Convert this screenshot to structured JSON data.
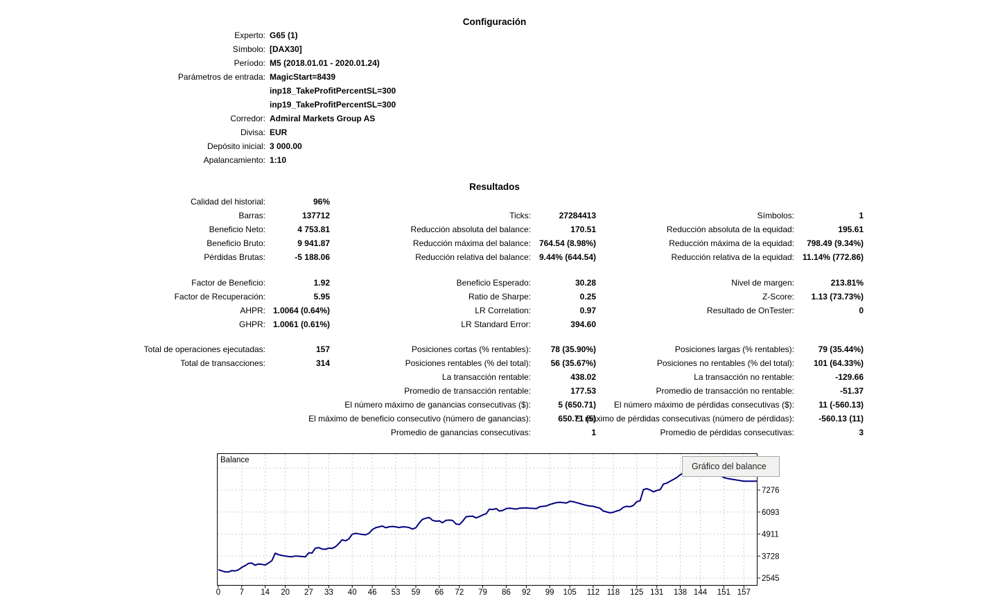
{
  "title_config": "Configuración",
  "title_results": "Resultados",
  "config": {
    "rows": [
      {
        "label": "Experto:",
        "value": "G65 (1)"
      },
      {
        "label": "Símbolo:",
        "value": "[DAX30]"
      },
      {
        "label": "Período:",
        "value": "M5 (2018.01.01 - 2020.01.24)"
      },
      {
        "label": "Parámetros de entrada:",
        "value": "MagicStart=8439"
      },
      {
        "label": "",
        "value": "inp18_TakeProfitPercentSL=300"
      },
      {
        "label": "",
        "value": "inp19_TakeProfitPercentSL=300"
      },
      {
        "label": "Corredor:",
        "value": "Admiral Markets Group AS"
      },
      {
        "label": "Divisa:",
        "value": "EUR"
      },
      {
        "label": "Depósito inicial:",
        "value": "3 000.00"
      },
      {
        "label": "Apalancamiento:",
        "value": "1:10"
      }
    ]
  },
  "results": {
    "blocks": [
      {
        "rows": [
          [
            "Calidad del historial:",
            "96%",
            "",
            "",
            "",
            ""
          ],
          [
            "Barras:",
            "137712",
            "Ticks:",
            "27284413",
            "Símbolos:",
            "1"
          ],
          [
            "Beneficio Neto:",
            "4 753.81",
            "Reducción absoluta del balance:",
            "170.51",
            "Reducción absoluta de la equidad:",
            "195.61"
          ],
          [
            "Beneficio Bruto:",
            "9 941.87",
            "Reducción máxima del balance:",
            "764.54 (8.98%)",
            "Reducción máxima de la equidad:",
            "798.49 (9.34%)"
          ],
          [
            "Pérdidas Brutas:",
            "-5 188.06",
            "Reducción relativa del balance:",
            "9.44% (644.54)",
            "Reducción relativa de la equidad:",
            "11.14% (772.86)"
          ]
        ]
      },
      {
        "rows": [
          [
            "Factor de Beneficio:",
            "1.92",
            "Beneficio Esperado:",
            "30.28",
            "Nivel de margen:",
            "213.81%"
          ],
          [
            "Factor de Recuperación:",
            "5.95",
            "Ratio de Sharpe:",
            "0.25",
            "Z-Score:",
            "1.13 (73.73%)"
          ],
          [
            "AHPR:",
            "1.0064 (0.64%)",
            "LR Correlation:",
            "0.97",
            "Resultado de OnTester:",
            "0"
          ],
          [
            "GHPR:",
            "1.0061 (0.61%)",
            "LR Standard Error:",
            "394.60",
            "",
            ""
          ]
        ]
      },
      {
        "rows": [
          [
            "Total de operaciones ejecutadas:",
            "157",
            "Posiciones cortas (% rentables):",
            "78 (35.90%)",
            "Posiciones largas (% rentables):",
            "79 (35.44%)"
          ],
          [
            "Total de transacciones:",
            "314",
            "Posiciones rentables (% del total):",
            "56 (35.67%)",
            "Posiciones no rentables (% del total):",
            "101 (64.33%)"
          ],
          [
            "",
            "",
            "La transacción rentable:",
            "438.02",
            "La transacción no rentable:",
            "-129.66"
          ],
          [
            "",
            "",
            "Promedio de transacción rentable:",
            "177.53",
            "Promedio de transacción no rentable:",
            "-51.37"
          ],
          [
            "",
            "",
            "El número máximo de ganancias consecutivas ($):",
            "5 (650.71)",
            "El número máximo de pérdidas consecutivas ($):",
            "11 (-560.13)"
          ],
          [
            "",
            "",
            "El máximo de beneficio consecutivo (número de ganancias):",
            "650.71 (5)",
            "El máximo de pérdidas consecutivas (número de pérdidas):",
            "-560.13 (11)"
          ],
          [
            "",
            "",
            "Promedio de ganancias consecutivas:",
            "1",
            "Promedio de pérdidas consecutivas:",
            "3"
          ]
        ]
      }
    ]
  },
  "chart": {
    "label": "Balance",
    "tooltip": "Gráfico del balance",
    "colors": {
      "line": "#000080",
      "grid": "#cccccc",
      "border": "#000000",
      "tooltip_bg": "#f1f1f0",
      "tooltip_border": "#a7a7a7"
    }
  },
  "chart_data": {
    "type": "line",
    "title": "Balance",
    "x_ticks": [
      0,
      7,
      14,
      20,
      27,
      33,
      40,
      46,
      53,
      59,
      66,
      72,
      79,
      86,
      92,
      99,
      105,
      112,
      118,
      125,
      131,
      138,
      144,
      151,
      157
    ],
    "y_ticks": [
      2545,
      3728,
      4911,
      6093,
      7276,
      8459
    ],
    "x_range": [
      0,
      161
    ],
    "y_range": [
      2545,
      8459
    ],
    "grid": true,
    "series": [
      {
        "name": "Balance",
        "points": [
          [
            0,
            3000
          ],
          [
            1,
            2930
          ],
          [
            2,
            2880
          ],
          [
            3,
            2870
          ],
          [
            4,
            2945
          ],
          [
            5,
            2925
          ],
          [
            6,
            2985
          ],
          [
            7,
            3120
          ],
          [
            8,
            3210
          ],
          [
            9,
            3330
          ],
          [
            10,
            3350
          ],
          [
            11,
            3235
          ],
          [
            12,
            3300
          ],
          [
            13,
            3280
          ],
          [
            14,
            3250
          ],
          [
            15,
            3355
          ],
          [
            16,
            3480
          ],
          [
            17,
            3880
          ],
          [
            18,
            3800
          ],
          [
            19,
            3760
          ],
          [
            20,
            3725
          ],
          [
            21,
            3700
          ],
          [
            22,
            3690
          ],
          [
            23,
            3730
          ],
          [
            24,
            3720
          ],
          [
            25,
            3705
          ],
          [
            26,
            3680
          ],
          [
            27,
            3900
          ],
          [
            28,
            3890
          ],
          [
            29,
            4150
          ],
          [
            30,
            4180
          ],
          [
            31,
            4105
          ],
          [
            32,
            4090
          ],
          [
            33,
            4155
          ],
          [
            34,
            4140
          ],
          [
            35,
            4230
          ],
          [
            36,
            4400
          ],
          [
            37,
            4600
          ],
          [
            38,
            4550
          ],
          [
            39,
            4650
          ],
          [
            40,
            4900
          ],
          [
            41,
            4950
          ],
          [
            42,
            4920
          ],
          [
            43,
            4890
          ],
          [
            44,
            4870
          ],
          [
            45,
            4950
          ],
          [
            46,
            5150
          ],
          [
            47,
            5250
          ],
          [
            48,
            5300
          ],
          [
            49,
            5340
          ],
          [
            50,
            5250
          ],
          [
            51,
            5300
          ],
          [
            52,
            5320
          ],
          [
            53,
            5300
          ],
          [
            54,
            5260
          ],
          [
            55,
            5300
          ],
          [
            56,
            5290
          ],
          [
            57,
            5260
          ],
          [
            58,
            5180
          ],
          [
            59,
            5250
          ],
          [
            60,
            5500
          ],
          [
            61,
            5700
          ],
          [
            62,
            5760
          ],
          [
            63,
            5800
          ],
          [
            64,
            5650
          ],
          [
            65,
            5600
          ],
          [
            66,
            5620
          ],
          [
            67,
            5520
          ],
          [
            68,
            5650
          ],
          [
            69,
            5660
          ],
          [
            70,
            5640
          ],
          [
            71,
            5450
          ],
          [
            72,
            5420
          ],
          [
            73,
            5600
          ],
          [
            74,
            5840
          ],
          [
            75,
            5860
          ],
          [
            76,
            5870
          ],
          [
            77,
            5780
          ],
          [
            78,
            5850
          ],
          [
            79,
            5940
          ],
          [
            80,
            6000
          ],
          [
            81,
            6250
          ],
          [
            82,
            6230
          ],
          [
            83,
            6280
          ],
          [
            84,
            6150
          ],
          [
            85,
            6180
          ],
          [
            86,
            6280
          ],
          [
            87,
            6300
          ],
          [
            88,
            6280
          ],
          [
            89,
            6250
          ],
          [
            90,
            6300
          ],
          [
            91,
            6310
          ],
          [
            92,
            6320
          ],
          [
            93,
            6300
          ],
          [
            94,
            6290
          ],
          [
            95,
            6280
          ],
          [
            96,
            6380
          ],
          [
            97,
            6400
          ],
          [
            98,
            6420
          ],
          [
            99,
            6500
          ],
          [
            100,
            6550
          ],
          [
            101,
            6600
          ],
          [
            102,
            6620
          ],
          [
            103,
            6600
          ],
          [
            104,
            6580
          ],
          [
            105,
            6670
          ],
          [
            106,
            6650
          ],
          [
            107,
            6600
          ],
          [
            108,
            6550
          ],
          [
            109,
            6500
          ],
          [
            110,
            6450
          ],
          [
            111,
            6420
          ],
          [
            112,
            6400
          ],
          [
            113,
            6350
          ],
          [
            114,
            6300
          ],
          [
            115,
            6150
          ],
          [
            116,
            6100
          ],
          [
            117,
            6050
          ],
          [
            118,
            6080
          ],
          [
            119,
            6150
          ],
          [
            120,
            6200
          ],
          [
            121,
            6350
          ],
          [
            122,
            6400
          ],
          [
            123,
            6380
          ],
          [
            124,
            6450
          ],
          [
            125,
            6650
          ],
          [
            126,
            6700
          ],
          [
            127,
            7300
          ],
          [
            128,
            7350
          ],
          [
            129,
            7280
          ],
          [
            130,
            7180
          ],
          [
            131,
            7250
          ],
          [
            132,
            7300
          ],
          [
            133,
            7600
          ],
          [
            134,
            7650
          ],
          [
            135,
            7750
          ],
          [
            136,
            7850
          ],
          [
            137,
            7950
          ],
          [
            138,
            8100
          ],
          [
            139,
            8200
          ],
          [
            140,
            8300
          ],
          [
            141,
            8380
          ],
          [
            142,
            8459
          ],
          [
            143,
            8440
          ],
          [
            144,
            8459
          ],
          [
            145,
            8420
          ],
          [
            146,
            8350
          ],
          [
            147,
            8300
          ],
          [
            148,
            8250
          ],
          [
            149,
            8150
          ],
          [
            150,
            8050
          ],
          [
            151,
            7950
          ],
          [
            152,
            7900
          ],
          [
            153,
            7870
          ],
          [
            154,
            7840
          ],
          [
            155,
            7810
          ],
          [
            156,
            7780
          ],
          [
            157,
            7753.81
          ]
        ]
      }
    ]
  }
}
